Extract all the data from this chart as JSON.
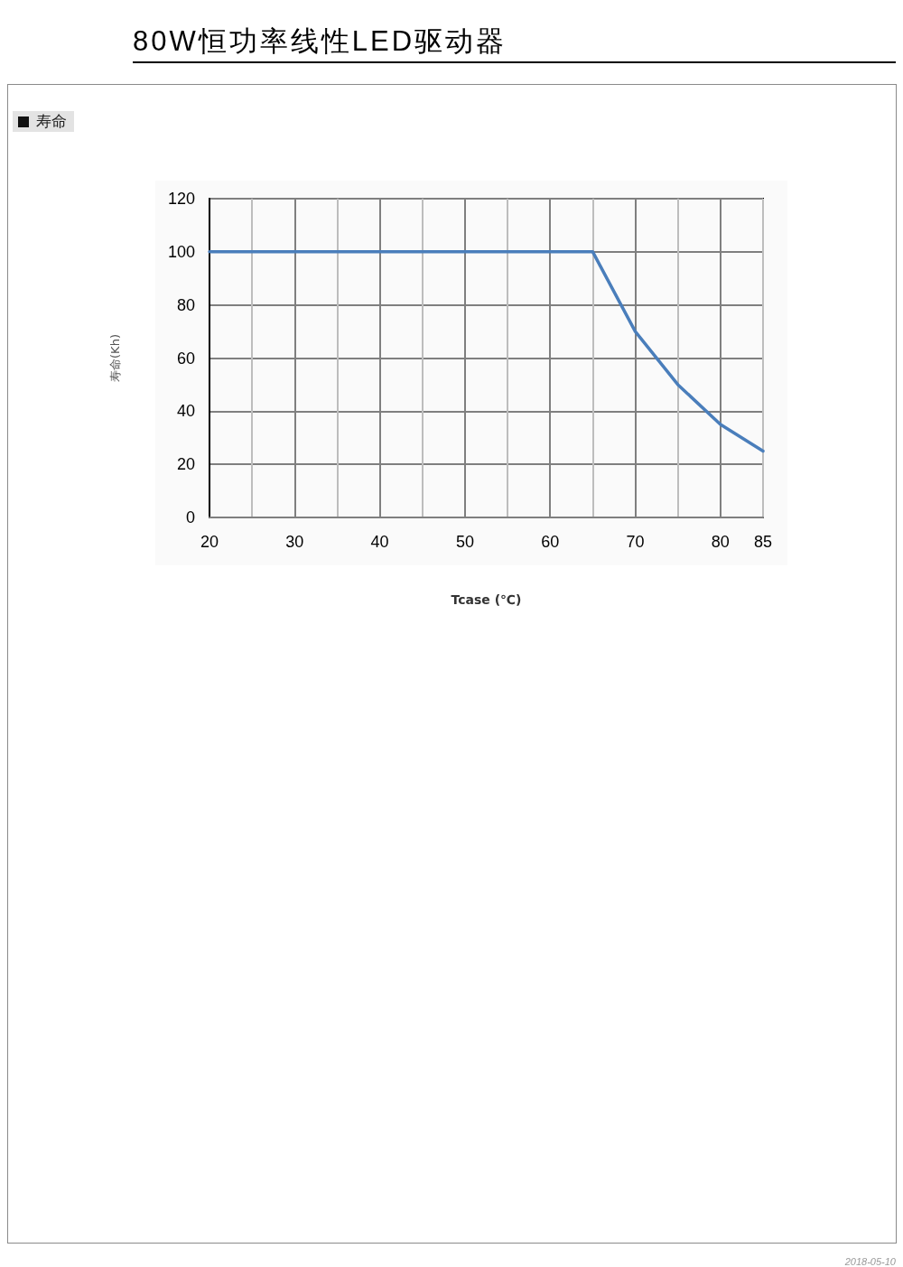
{
  "chart_data": {
    "type": "line",
    "title": "80W恒功率线性LED驱动器",
    "subtitle": "寿命",
    "xlabel": "Tcase (℃)",
    "ylabel": "寿命(Kh)",
    "x": [
      20,
      65,
      70,
      75,
      80,
      85
    ],
    "series": [
      {
        "color": "#4a7ebb",
        "values": [
          100,
          100,
          70,
          50,
          35,
          25
        ]
      }
    ],
    "xlim": [
      20,
      85
    ],
    "xticks": [
      20,
      {
        "value": 25,
        "label": null
      },
      30,
      {
        "value": 35,
        "label": null
      },
      40,
      {
        "value": 45,
        "label": null
      },
      50,
      {
        "value": 55,
        "label": null
      },
      60,
      {
        "value": 65,
        "label": null
      },
      70,
      {
        "value": 75,
        "label": null
      },
      80,
      85
    ],
    "ylim": [
      0,
      120
    ],
    "yticks": [
      0,
      20,
      40,
      60,
      80,
      100,
      120
    ],
    "grid": true,
    "marker": "none",
    "line_style": "solid",
    "annotations": [
      "2018-05-10"
    ]
  }
}
